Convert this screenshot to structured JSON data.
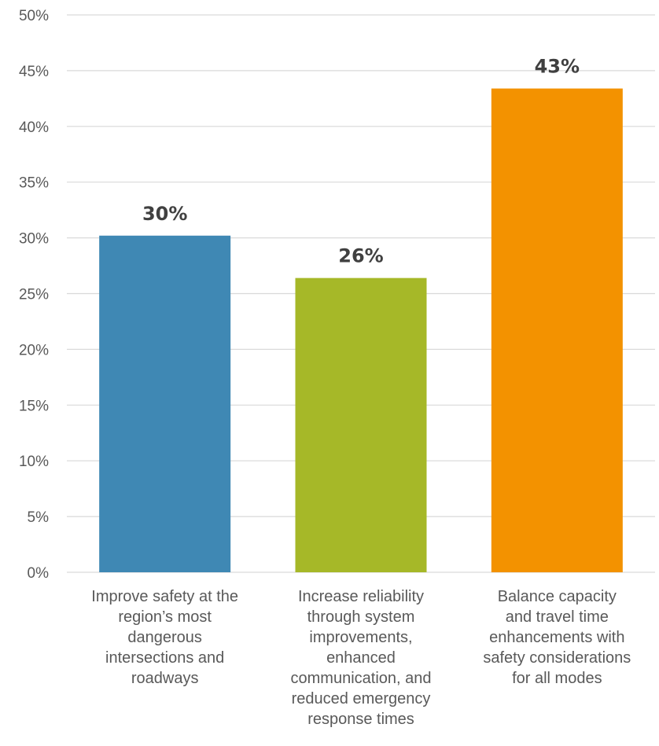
{
  "chart_data": {
    "type": "bar",
    "categories": [
      "Improve safety at the region’s most dangerous intersections and roadways",
      "Increase reliability through system improvements, enhanced communication, and reduced emergency response times",
      "Balance capacity and travel time enhancements with safety considerations for all modes"
    ],
    "category_lines": [
      [
        "Improve safety at the",
        "region’s most",
        "dangerous",
        "intersections and",
        "roadways"
      ],
      [
        "Increase reliability",
        "through system",
        "improvements,",
        "enhanced",
        "communication, and",
        "reduced emergency",
        "response times"
      ],
      [
        "Balance capacity",
        "and travel time",
        "enhancements with",
        "safety considerations",
        "for all modes"
      ]
    ],
    "values": [
      30.2,
      26.4,
      43.4
    ],
    "data_labels": [
      "30%",
      "26%",
      "43%"
    ],
    "colors": [
      "#3f88b4",
      "#a6b828",
      "#f39200"
    ],
    "yticks": [
      "0%",
      "5%",
      "10%",
      "15%",
      "20%",
      "25%",
      "30%",
      "35%",
      "40%",
      "45%",
      "50%"
    ],
    "ylim": [
      0,
      50
    ],
    "grid": true,
    "title": "",
    "xlabel": "",
    "ylabel": ""
  }
}
